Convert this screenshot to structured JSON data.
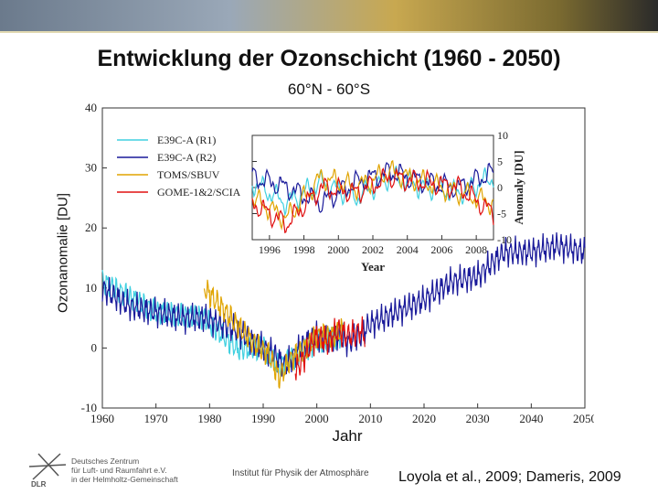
{
  "page": {
    "title": "Entwicklung der Ozonschicht (1960 - 2050)",
    "subtitle": "60°N - 60°S",
    "institute": "Institut für Physik der Atmosphäre",
    "citation": "Loyola et al., 2009; Dameris, 2009",
    "logo": {
      "abbr": "DLR",
      "line1": "Deutsches Zentrum",
      "line2": "für Luft- und Raumfahrt e.V.",
      "line3": "in der Helmholtz-Gemeinschaft"
    }
  },
  "colors": {
    "r1": "#40d0e0",
    "r2": "#1a1a9a",
    "toms": "#e0a400",
    "gome": "#e01010",
    "axis": "#333333"
  },
  "chart_data": [
    {
      "type": "line",
      "title": "Entwicklung der Ozonschicht (1960 - 2050)",
      "xlabel": "Jahr",
      "ylabel": "Ozonanomalie [DU]",
      "xlim": [
        1960,
        2050
      ],
      "ylim": [
        -10,
        40
      ],
      "x_ticks": [
        1960,
        1970,
        1980,
        1990,
        2000,
        2010,
        2020,
        2030,
        2040,
        2050
      ],
      "y_ticks": [
        -10,
        0,
        10,
        20,
        30,
        40
      ],
      "series": [
        {
          "name": "E39C-A (R1)",
          "color_key": "r1",
          "x": [
            1960,
            1970,
            1979,
            1985,
            1990,
            1993,
            1997,
            2000,
            2005
          ],
          "y": [
            11,
            6,
            5,
            0,
            0,
            -3,
            -1,
            1,
            2
          ]
        },
        {
          "name": "E39C-A (R2)",
          "color_key": "r2",
          "x": [
            1960,
            1965,
            1970,
            1975,
            1979,
            1982,
            1985,
            1988,
            1990,
            1992,
            1994,
            1996,
            1998,
            2000,
            2002,
            2004,
            2006,
            2008,
            2010,
            2015,
            2020,
            2025,
            2030,
            2035,
            2040,
            2045,
            2050
          ],
          "y": [
            10,
            7,
            6,
            5,
            5,
            4,
            3,
            1,
            0,
            -1,
            -3,
            -1,
            1,
            2,
            1,
            2,
            1,
            2,
            4,
            6,
            8,
            11,
            12,
            16,
            16,
            17,
            16
          ]
        },
        {
          "name": "TOMS/SBUV",
          "color_key": "toms",
          "x": [
            1979,
            1982,
            1985,
            1988,
            1991,
            1993,
            1995,
            1998,
            2000,
            2003,
            2005
          ],
          "y": [
            10,
            7,
            4,
            1,
            -1,
            -5,
            -2,
            0,
            2,
            2,
            3
          ]
        },
        {
          "name": "GOME-1&2/SCIA",
          "color_key": "gome",
          "x": [
            1996,
            1998,
            2000,
            2002,
            2004,
            2006,
            2008,
            2009
          ],
          "y": [
            -4,
            -1,
            2,
            1,
            3,
            2,
            3,
            2
          ]
        }
      ]
    },
    {
      "type": "line",
      "title": "",
      "xlabel": "Year",
      "ylabel": "Anomaly [DU]",
      "xlim": [
        1995,
        2009
      ],
      "ylim": [
        -10,
        10
      ],
      "x_ticks": [
        1996,
        1998,
        2000,
        2002,
        2004,
        2006,
        2008
      ],
      "y_ticks": [
        -10,
        -5,
        0,
        5,
        10
      ],
      "series": [
        {
          "name": "E39C-A (R1)",
          "color_key": "r1",
          "x": [
            1995,
            1997,
            1999,
            2001,
            2003,
            2005,
            2007,
            2009
          ],
          "y": [
            1,
            -3,
            1,
            -2,
            2,
            0,
            -1,
            2
          ]
        },
        {
          "name": "E39C-A (R2)",
          "color_key": "r2",
          "x": [
            1995,
            1997,
            1999,
            2001,
            2003,
            2005,
            2007,
            2009
          ],
          "y": [
            2,
            0,
            -3,
            1,
            3,
            1,
            0,
            3
          ]
        },
        {
          "name": "TOMS/SBUV",
          "color_key": "toms",
          "x": [
            1995,
            1997,
            1999,
            2001,
            2003,
            2005,
            2007,
            2009
          ],
          "y": [
            -2,
            -6,
            2,
            0,
            3,
            1,
            -1,
            -3
          ]
        },
        {
          "name": "GOME-1&2/SCIA",
          "color_key": "gome",
          "x": [
            1995,
            1997,
            1999,
            2001,
            2003,
            2005,
            2007,
            2009
          ],
          "y": [
            -3,
            -7,
            0,
            -1,
            2,
            1,
            0,
            -5
          ]
        }
      ]
    }
  ]
}
